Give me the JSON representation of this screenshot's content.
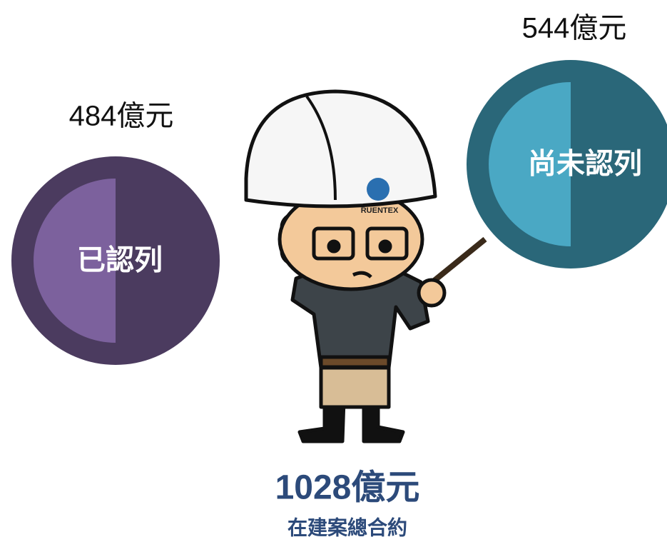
{
  "recognized": {
    "amount": "484億元",
    "label": "已認列"
  },
  "unrecognized": {
    "amount": "544億元",
    "label": "尚未認列"
  },
  "total": {
    "amount": "1028億元",
    "label": "在建案總合約"
  },
  "mascot": {
    "helmet_logo": "RUENTEX"
  }
}
